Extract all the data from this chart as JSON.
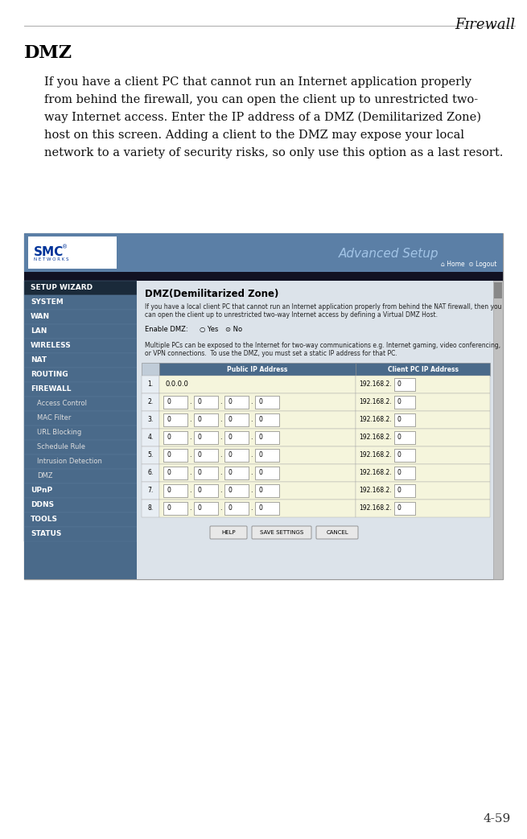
{
  "bg_color": "#ffffff",
  "page_number": "4-59",
  "section_title": "DMZ",
  "body_text_lines": [
    "If you have a client PC that cannot run an Internet application properly",
    "from behind the firewall, you can open the client up to unrestricted two-",
    "way Internet access. Enter the IP address of a DMZ (Demilitarized Zone)",
    "host on this screen. Adding a client to the DMZ may expose your local",
    "network to a variety of security risks, so only use this option as a last resort."
  ],
  "header_bar_color": "#5b7fa6",
  "nav_bg_main": "#4a6a8a",
  "nav_bg_dark": "#1a2a3a",
  "nav_items": [
    [
      "SETUP WIZARD",
      false,
      true
    ],
    [
      "SYSTEM",
      false,
      false
    ],
    [
      "WAN",
      false,
      false
    ],
    [
      "LAN",
      false,
      false
    ],
    [
      "WIRELESS",
      false,
      false
    ],
    [
      "NAT",
      false,
      false
    ],
    [
      "ROUTING",
      false,
      false
    ],
    [
      "FIREWALL",
      false,
      false
    ],
    [
      "Access Control",
      true,
      false
    ],
    [
      "MAC Filter",
      true,
      false
    ],
    [
      "URL Blocking",
      true,
      false
    ],
    [
      "Schedule Rule",
      true,
      false
    ],
    [
      "Intrusion Detection",
      true,
      false
    ],
    [
      "DMZ",
      true,
      false
    ],
    [
      "UPnP",
      false,
      false
    ],
    [
      "DDNS",
      false,
      false
    ],
    [
      "TOOLS",
      false,
      false
    ],
    [
      "STATUS",
      false,
      false
    ]
  ],
  "content_bg": "#ccd5de",
  "table_header_bg": "#4a6a8a",
  "table_row_bg_odd": "#f5f5dc",
  "table_row_bg_even": "#f5f5dc",
  "dmz_title": "DMZ(Demilitarized Zone)",
  "enable_text": "Enable DMZ:",
  "desc_text1": "If you have a local client PC that cannot run an Internet application properly from behind the NAT firewall, then you",
  "desc_text2": "can open the client up to unrestricted two-way Internet access by defining a Virtual DMZ Host.",
  "multi_text1": "Multiple PCs can be exposed to the Internet for two-way communications e.g. Internet gaming, video conferencing,",
  "multi_text2": "or VPN connections.  To use the DMZ, you must set a static IP address for that PC.",
  "col1": "Public IP Address",
  "col2": "Client PC IP Address",
  "ip_prefix": "192.168.2.",
  "row_nums": [
    "1.",
    "2.",
    "3.",
    "4.",
    "5.",
    "6.",
    "7.",
    "8."
  ],
  "firewall_text": "FIREWALL"
}
